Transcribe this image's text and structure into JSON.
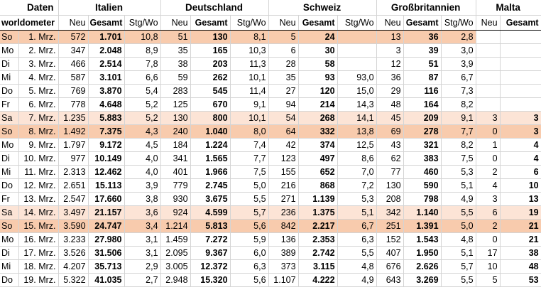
{
  "header": {
    "daten": "Daten",
    "source": "worldometer",
    "countries": [
      "Italien",
      "Deutschland",
      "Schweiz",
      "Großbritannien",
      "Malta"
    ],
    "col_neu": "Neu",
    "col_gesamt": "Gesamt",
    "col_stg": "Stg/Wo"
  },
  "rows": [
    {
      "day": "So",
      "date": "1. Mrz.",
      "it": [
        "572",
        "1.701",
        "10,8"
      ],
      "de": [
        "51",
        "130",
        "8,1"
      ],
      "ch": [
        "5",
        "24",
        ""
      ],
      "gb": [
        "13",
        "36",
        "2,8"
      ],
      "mt": [
        "",
        ""
      ]
    },
    {
      "day": "Mo",
      "date": "2. Mrz.",
      "it": [
        "347",
        "2.048",
        "8,9"
      ],
      "de": [
        "35",
        "165",
        "10,3"
      ],
      "ch": [
        "6",
        "30",
        ""
      ],
      "gb": [
        "3",
        "39",
        "3,0"
      ],
      "mt": [
        "",
        ""
      ]
    },
    {
      "day": "Di",
      "date": "3. Mrz.",
      "it": [
        "466",
        "2.514",
        "7,8"
      ],
      "de": [
        "38",
        "203",
        "11,3"
      ],
      "ch": [
        "28",
        "58",
        ""
      ],
      "gb": [
        "12",
        "51",
        "3,9"
      ],
      "mt": [
        "",
        ""
      ]
    },
    {
      "day": "Mi",
      "date": "4. Mrz.",
      "it": [
        "587",
        "3.101",
        "6,6"
      ],
      "de": [
        "59",
        "262",
        "10,1"
      ],
      "ch": [
        "35",
        "93",
        "93,0"
      ],
      "gb": [
        "36",
        "87",
        "6,7"
      ],
      "mt": [
        "",
        ""
      ]
    },
    {
      "day": "Do",
      "date": "5. Mrz.",
      "it": [
        "769",
        "3.870",
        "5,4"
      ],
      "de": [
        "283",
        "545",
        "11,4"
      ],
      "ch": [
        "27",
        "120",
        "15,0"
      ],
      "gb": [
        "29",
        "116",
        "7,3"
      ],
      "mt": [
        "",
        ""
      ]
    },
    {
      "day": "Fr",
      "date": "6. Mrz.",
      "it": [
        "778",
        "4.648",
        "5,2"
      ],
      "de": [
        "125",
        "670",
        "9,1"
      ],
      "ch": [
        "94",
        "214",
        "14,3"
      ],
      "gb": [
        "48",
        "164",
        "8,2"
      ],
      "mt": [
        "",
        ""
      ]
    },
    {
      "day": "Sa",
      "date": "7. Mrz.",
      "it": [
        "1.235",
        "5.883",
        "5,2"
      ],
      "de": [
        "130",
        "800",
        "10,1"
      ],
      "ch": [
        "54",
        "268",
        "14,1"
      ],
      "gb": [
        "45",
        "209",
        "9,1"
      ],
      "mt": [
        "3",
        "3"
      ]
    },
    {
      "day": "So",
      "date": "8. Mrz.",
      "it": [
        "1.492",
        "7.375",
        "4,3"
      ],
      "de": [
        "240",
        "1.040",
        "8,0"
      ],
      "ch": [
        "64",
        "332",
        "13,8"
      ],
      "gb": [
        "69",
        "278",
        "7,7"
      ],
      "mt": [
        "0",
        "3"
      ]
    },
    {
      "day": "Mo",
      "date": "9. Mrz.",
      "it": [
        "1.797",
        "9.172",
        "4,5"
      ],
      "de": [
        "184",
        "1.224",
        "7,4"
      ],
      "ch": [
        "42",
        "374",
        "12,5"
      ],
      "gb": [
        "43",
        "321",
        "8,2"
      ],
      "mt": [
        "1",
        "4"
      ]
    },
    {
      "day": "Di",
      "date": "10. Mrz.",
      "it": [
        "977",
        "10.149",
        "4,0"
      ],
      "de": [
        "341",
        "1.565",
        "7,7"
      ],
      "ch": [
        "123",
        "497",
        "8,6"
      ],
      "gb": [
        "62",
        "383",
        "7,5"
      ],
      "mt": [
        "0",
        "4"
      ]
    },
    {
      "day": "Mi",
      "date": "11. Mrz.",
      "it": [
        "2.313",
        "12.462",
        "4,0"
      ],
      "de": [
        "401",
        "1.966",
        "7,5"
      ],
      "ch": [
        "155",
        "652",
        "7,0"
      ],
      "gb": [
        "77",
        "460",
        "5,3"
      ],
      "mt": [
        "2",
        "6"
      ]
    },
    {
      "day": "Do",
      "date": "12. Mrz.",
      "it": [
        "2.651",
        "15.113",
        "3,9"
      ],
      "de": [
        "779",
        "2.745",
        "5,0"
      ],
      "ch": [
        "216",
        "868",
        "7,2"
      ],
      "gb": [
        "130",
        "590",
        "5,1"
      ],
      "mt": [
        "4",
        "10"
      ]
    },
    {
      "day": "Fr",
      "date": "13. Mrz.",
      "it": [
        "2.547",
        "17.660",
        "3,8"
      ],
      "de": [
        "930",
        "3.675",
        "5,5"
      ],
      "ch": [
        "271",
        "1.139",
        "5,3"
      ],
      "gb": [
        "208",
        "798",
        "4,9"
      ],
      "mt": [
        "3",
        "13"
      ]
    },
    {
      "day": "Sa",
      "date": "14. Mrz.",
      "it": [
        "3.497",
        "21.157",
        "3,6"
      ],
      "de": [
        "924",
        "4.599",
        "5,7"
      ],
      "ch": [
        "236",
        "1.375",
        "5,1"
      ],
      "gb": [
        "342",
        "1.140",
        "5,5"
      ],
      "mt": [
        "6",
        "19"
      ]
    },
    {
      "day": "So",
      "date": "15. Mrz.",
      "it": [
        "3.590",
        "24.747",
        "3,4"
      ],
      "de": [
        "1.214",
        "5.813",
        "5,6"
      ],
      "ch": [
        "842",
        "2.217",
        "6,7"
      ],
      "gb": [
        "251",
        "1.391",
        "5,0"
      ],
      "mt": [
        "2",
        "21"
      ]
    },
    {
      "day": "Mo",
      "date": "16. Mrz.",
      "it": [
        "3.233",
        "27.980",
        "3,1"
      ],
      "de": [
        "1.459",
        "7.272",
        "5,9"
      ],
      "ch": [
        "136",
        "2.353",
        "6,3"
      ],
      "gb": [
        "152",
        "1.543",
        "4,8"
      ],
      "mt": [
        "0",
        "21"
      ]
    },
    {
      "day": "Di",
      "date": "17. Mrz.",
      "it": [
        "3.526",
        "31.506",
        "3,1"
      ],
      "de": [
        "2.095",
        "9.367",
        "6,0"
      ],
      "ch": [
        "389",
        "2.742",
        "5,5"
      ],
      "gb": [
        "407",
        "1.950",
        "5,1"
      ],
      "mt": [
        "17",
        "38"
      ]
    },
    {
      "day": "Mi",
      "date": "18. Mrz.",
      "it": [
        "4.207",
        "35.713",
        "2,9"
      ],
      "de": [
        "3.005",
        "12.372",
        "6,3"
      ],
      "ch": [
        "373",
        "3.115",
        "4,8"
      ],
      "gb": [
        "676",
        "2.626",
        "5,7"
      ],
      "mt": [
        "10",
        "48"
      ]
    },
    {
      "day": "Do",
      "date": "19. Mrz.",
      "it": [
        "5.322",
        "41.035",
        "2,7"
      ],
      "de": [
        "2.948",
        "15.320",
        "5,6"
      ],
      "ch": [
        "1.107",
        "4.222",
        "4,9"
      ],
      "gb": [
        "643",
        "3.269",
        "5,5"
      ],
      "mt": [
        "5",
        "53"
      ]
    }
  ]
}
